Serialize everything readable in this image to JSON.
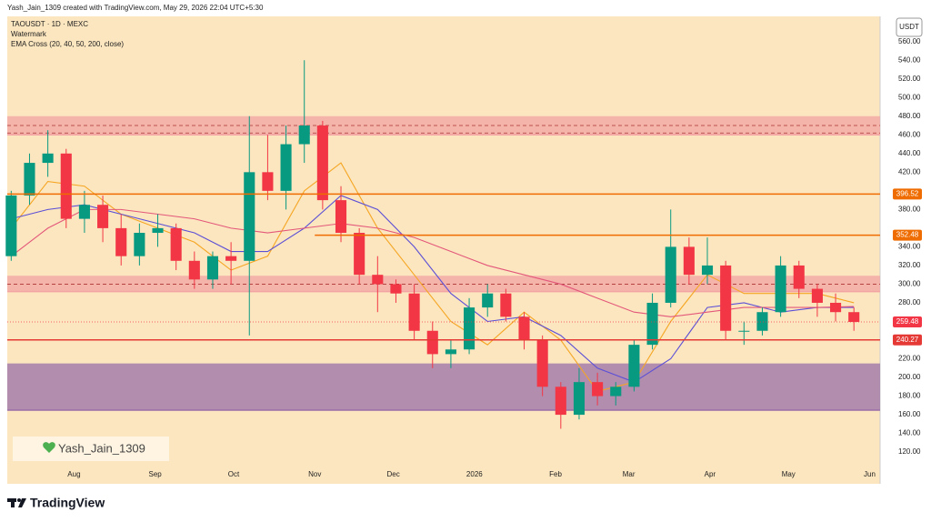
{
  "header": {
    "credit": "Yash_Jain_1309 created with TradingView.com, May 29, 2026 22:04 UTC+5:30",
    "symbol": "TAOUSDT · 1D · MEXC",
    "watermark_label": "Watermark",
    "indicator": "EMA Cross (20, 40, 50, 200, close)"
  },
  "watermark": "Yash_Jain_1309",
  "footer": {
    "brand": "TradingView"
  },
  "chart_data": {
    "type": "candlestick",
    "currency": "USDT",
    "xlim": [
      5.5,
      339
    ],
    "ylim": [
      86,
      587
    ],
    "xticks": [
      {
        "value": 31,
        "label": "Aug"
      },
      {
        "value": 62,
        "label": "Sep"
      },
      {
        "value": 92,
        "label": "Oct"
      },
      {
        "value": 123,
        "label": "Nov"
      },
      {
        "value": 153,
        "label": "Dec"
      },
      {
        "value": 184,
        "label": "2026"
      },
      {
        "value": 215,
        "label": "Feb"
      },
      {
        "value": 243,
        "label": "Mar"
      },
      {
        "value": 274,
        "label": "Apr"
      },
      {
        "value": 304,
        "label": "May"
      },
      {
        "value": 335,
        "label": "Jun"
      }
    ],
    "yticks": [
      {
        "value": 120,
        "label": "120.00"
      },
      {
        "value": 140,
        "label": "140.00"
      },
      {
        "value": 160,
        "label": "160.00"
      },
      {
        "value": 180,
        "label": "180.00"
      },
      {
        "value": 200,
        "label": "200.00"
      },
      {
        "value": 220,
        "label": "220.00"
      },
      {
        "value": 280,
        "label": "280.00"
      },
      {
        "value": 300,
        "label": "300.00"
      },
      {
        "value": 320,
        "label": "320.00"
      },
      {
        "value": 340,
        "label": "340.00"
      },
      {
        "value": 380,
        "label": "380.00"
      },
      {
        "value": 420,
        "label": "420.00"
      },
      {
        "value": 440,
        "label": "440.00"
      },
      {
        "value": 460,
        "label": "460.00"
      },
      {
        "value": 480,
        "label": "480.00"
      },
      {
        "value": 500,
        "label": "500.00"
      },
      {
        "value": 520,
        "label": "520.00"
      },
      {
        "value": 540,
        "label": "540.00"
      },
      {
        "value": 560,
        "label": "560.00"
      }
    ],
    "up_color": "#089981",
    "down_color": "#f23645",
    "x": [
      7,
      14,
      21,
      28,
      35,
      42,
      49,
      56,
      63,
      70,
      77,
      84,
      91,
      98,
      105,
      112,
      119,
      126,
      133,
      140,
      147,
      154,
      161,
      168,
      175,
      182,
      189,
      196,
      203,
      210,
      217,
      224,
      231,
      238,
      245,
      252,
      259,
      266,
      273,
      280,
      287,
      294,
      301,
      308,
      315,
      322,
      329
    ],
    "open": [
      330,
      395,
      430,
      440,
      370,
      385,
      360,
      330,
      355,
      360,
      325,
      305,
      330,
      325,
      420,
      400,
      450,
      470,
      390,
      355,
      310,
      300,
      290,
      250,
      225,
      230,
      275,
      290,
      265,
      240,
      190,
      160,
      195,
      180,
      190,
      235,
      280,
      340,
      310,
      320,
      250,
      250,
      270,
      320,
      295,
      280,
      270
    ],
    "high": [
      400,
      440,
      465,
      445,
      400,
      395,
      375,
      365,
      375,
      365,
      335,
      335,
      345,
      480,
      460,
      470,
      540,
      475,
      405,
      360,
      330,
      305,
      300,
      260,
      240,
      285,
      300,
      295,
      270,
      245,
      195,
      210,
      205,
      195,
      240,
      290,
      380,
      350,
      350,
      325,
      260,
      275,
      330,
      325,
      300,
      290,
      275
    ],
    "low": [
      325,
      385,
      415,
      360,
      355,
      345,
      320,
      320,
      340,
      315,
      295,
      295,
      300,
      245,
      390,
      380,
      430,
      380,
      345,
      300,
      270,
      280,
      240,
      210,
      210,
      225,
      265,
      260,
      230,
      180,
      145,
      155,
      170,
      170,
      185,
      230,
      275,
      300,
      300,
      240,
      235,
      245,
      265,
      285,
      265,
      260,
      250
    ],
    "close": [
      395,
      430,
      440,
      370,
      385,
      360,
      330,
      355,
      360,
      325,
      305,
      330,
      325,
      420,
      400,
      450,
      470,
      390,
      355,
      310,
      300,
      290,
      250,
      225,
      230,
      275,
      290,
      265,
      240,
      190,
      160,
      195,
      180,
      190,
      235,
      280,
      340,
      310,
      320,
      250,
      250,
      270,
      320,
      295,
      280,
      270,
      259.48
    ],
    "ema_x": [
      7,
      21,
      35,
      49,
      63,
      77,
      91,
      105,
      119,
      133,
      147,
      161,
      175,
      189,
      203,
      217,
      231,
      245,
      259,
      273,
      287,
      301,
      315,
      329
    ],
    "emas": [
      {
        "color": "#f5a623",
        "values": [
          360,
          410,
          405,
          375,
          360,
          345,
          315,
          330,
          400,
          430,
          360,
          310,
          260,
          235,
          270,
          240,
          185,
          195,
          260,
          310,
          290,
          290,
          290,
          280
        ]
      },
      {
        "color": "#5b4fd6",
        "values": [
          370,
          380,
          385,
          375,
          365,
          355,
          335,
          335,
          360,
          395,
          380,
          340,
          290,
          260,
          265,
          245,
          210,
          195,
          220,
          275,
          280,
          270,
          275,
          275
        ]
      },
      {
        "color": "#e3577a",
        "values": [
          330,
          360,
          380,
          380,
          375,
          370,
          360,
          355,
          360,
          365,
          360,
          350,
          335,
          320,
          310,
          300,
          285,
          270,
          265,
          270,
          275,
          275,
          275,
          276
        ]
      }
    ],
    "zones": [
      {
        "from": 460,
        "to": 480,
        "color": "#f2a3a3"
      },
      {
        "from": 292,
        "to": 309,
        "color": "#f2a3a3"
      },
      {
        "from": 165,
        "to": 215,
        "color": "#9a6fa8"
      }
    ],
    "dashed_levels": [
      470,
      462,
      300
    ],
    "levels": [
      {
        "value": 396.52,
        "color": "#ef6c00",
        "from": 5.5
      },
      {
        "value": 352.48,
        "color": "#ef6c00",
        "from": 123
      },
      {
        "value": 259.48,
        "color": "#f23645",
        "from": 5.5,
        "dotted": true
      },
      {
        "value": 240.27,
        "color": "#e53935",
        "from": 5.5
      }
    ]
  }
}
